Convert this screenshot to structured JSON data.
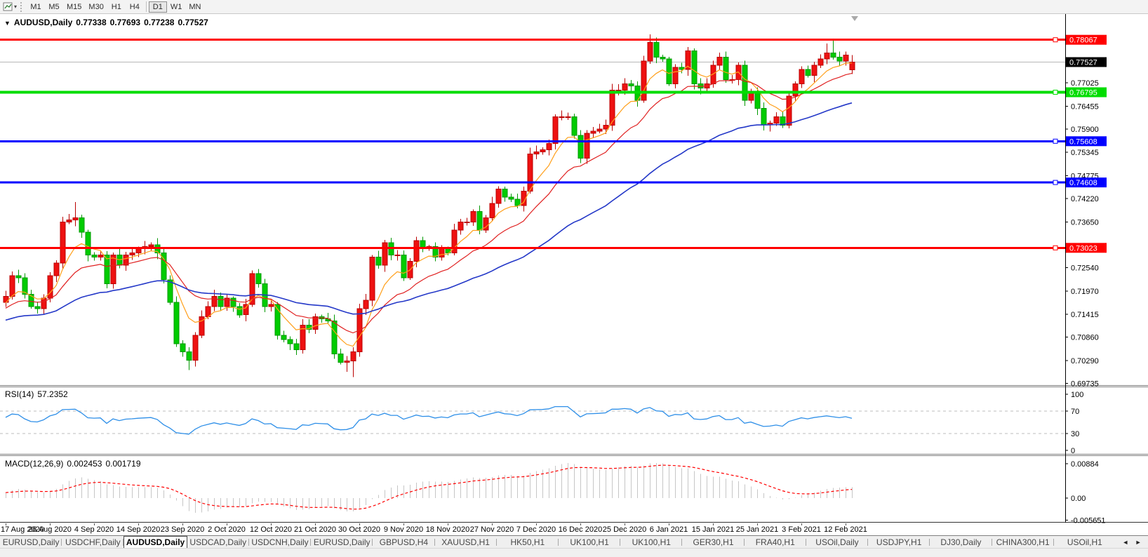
{
  "toolbar": {
    "timeframes": [
      "M1",
      "M5",
      "M15",
      "M30",
      "H1",
      "H4",
      "D1",
      "W1",
      "MN"
    ],
    "active_timeframe": "D1",
    "group_break_before": "D1"
  },
  "icons": {
    "collapse_triangle": "▼",
    "toolbar_caret": "▾",
    "tab_scroll_left": "◄",
    "tab_scroll_right": "►"
  },
  "chart_header": {
    "symbol": "AUDUSD,Daily",
    "open": "0.77338",
    "high": "0.77693",
    "low": "0.77238",
    "close": "0.77527"
  },
  "price_axis": {
    "ticks": [
      0.77025,
      0.76455,
      0.759,
      0.75345,
      0.74775,
      0.7422,
      0.7365,
      0.7254,
      0.7197,
      0.71415,
      0.7086,
      0.7029,
      0.69735
    ]
  },
  "levels": [
    {
      "price": 0.78067,
      "color": "#ff0000",
      "width": 3
    },
    {
      "price": 0.76795,
      "color": "#00dd00",
      "width": 4
    },
    {
      "price": 0.75608,
      "color": "#0000ff",
      "width": 3
    },
    {
      "price": 0.74608,
      "color": "#0000ff",
      "width": 3
    },
    {
      "price": 0.73023,
      "color": "#ff0000",
      "width": 3
    }
  ],
  "current_price": {
    "value": 0.77527,
    "line_color": "#b8b8b8",
    "label_bg": "#000000"
  },
  "date_axis": {
    "labels": [
      "17 Aug 2020",
      "26 Aug 2020",
      "4 Sep 2020",
      "14 Sep 2020",
      "23 Sep 2020",
      "2 Oct 2020",
      "12 Oct 2020",
      "21 Oct 2020",
      "30 Oct 2020",
      "9 Nov 2020",
      "18 Nov 2020",
      "27 Nov 2020",
      "7 Dec 2020",
      "16 Dec 2020",
      "25 Dec 2020",
      "6 Jan 2021",
      "15 Jan 2021",
      "25 Jan 2021",
      "3 Feb 2021",
      "12 Feb 2021"
    ]
  },
  "rsi_panel": {
    "label": "RSI(14)",
    "value": "57.2352",
    "axis_ticks": [
      100,
      70,
      30,
      0
    ],
    "overbought": 70,
    "oversold": 30,
    "line_color": "#2e8fe8"
  },
  "macd_panel": {
    "label": "MACD(12,26,9)",
    "macd_value": "0.002453",
    "signal_value": "0.001719",
    "axis_ticks": [
      {
        "label": "0.00884",
        "value": 0.00884
      },
      {
        "label": "0.00",
        "value": 0
      },
      {
        "label": "-0.005651",
        "value": -0.005651
      }
    ],
    "histogram_color": "#c6c6c6",
    "signal_color": "#ff0000"
  },
  "tabs": {
    "items": [
      "EURUSD,Daily",
      "USDCHF,Daily",
      "AUDUSD,Daily",
      "USDCAD,Daily",
      "USDCNH,Daily",
      "EURUSD,Daily",
      "GBPUSD,H4",
      "XAUUSD,H1",
      "HK50,H1",
      "UK100,H1",
      "UK100,H1",
      "GER30,H1",
      "FRA40,H1",
      "USOil,Daily",
      "USDJPY,H1",
      "DJ30,Daily",
      "CHINA300,H1",
      "USOil,H1"
    ],
    "active_index": 2
  },
  "chart_data": {
    "type": "candlestick",
    "symbol": "AUDUSD",
    "timeframe": "Daily",
    "visible_range": [
      "17 Aug 2020",
      "19 Feb 2021"
    ],
    "first_open": 0.717,
    "closes": [
      0.7185,
      0.7235,
      0.723,
      0.719,
      0.716,
      0.7155,
      0.718,
      0.7235,
      0.7265,
      0.7365,
      0.737,
      0.7375,
      0.734,
      0.7285,
      0.728,
      0.7285,
      0.7215,
      0.7285,
      0.726,
      0.7285,
      0.729,
      0.73,
      0.7305,
      0.731,
      0.729,
      0.7225,
      0.717,
      0.707,
      0.705,
      0.703,
      0.709,
      0.7135,
      0.716,
      0.7185,
      0.716,
      0.718,
      0.716,
      0.714,
      0.7165,
      0.724,
      0.7215,
      0.716,
      0.7165,
      0.709,
      0.708,
      0.707,
      0.7055,
      0.7115,
      0.7105,
      0.7135,
      0.713,
      0.7125,
      0.7045,
      0.7025,
      0.7028,
      0.705,
      0.7155,
      0.7175,
      0.728,
      0.726,
      0.7315,
      0.7285,
      0.7285,
      0.723,
      0.727,
      0.732,
      0.73,
      0.7305,
      0.728,
      0.73,
      0.729,
      0.7345,
      0.7365,
      0.7365,
      0.739,
      0.7345,
      0.7375,
      0.741,
      0.7445,
      0.7425,
      0.742,
      0.7405,
      0.744,
      0.753,
      0.7535,
      0.754,
      0.7555,
      0.762,
      0.762,
      0.762,
      0.7575,
      0.752,
      0.758,
      0.7585,
      0.759,
      0.76,
      0.7685,
      0.7685,
      0.77,
      0.7695,
      0.766,
      0.7755,
      0.78,
      0.7765,
      0.776,
      0.77,
      0.774,
      0.7735,
      0.778,
      0.77,
      0.769,
      0.77,
      0.7745,
      0.7765,
      0.771,
      0.771,
      0.7745,
      0.766,
      0.768,
      0.764,
      0.76,
      0.7605,
      0.762,
      0.76,
      0.767,
      0.77,
      0.7735,
      0.772,
      0.7745,
      0.776,
      0.7775,
      0.7765,
      0.7755,
      0.777,
      0.77527
    ],
    "wick_amp": 0.0016,
    "overrides": {
      "11": {
        "h": 0.7413
      },
      "29": {
        "l": 0.7006
      },
      "54": {
        "l": 0.7002
      },
      "55": {
        "l": 0.6989
      },
      "102": {
        "h": 0.782,
        "l": 0.7748
      },
      "130": {
        "h": 0.7798
      },
      "131": {
        "h": 0.78067
      },
      "134": {
        "o": 0.77338,
        "h": 0.77693,
        "l": 0.77238,
        "c": 0.77527
      }
    },
    "bull_color": "#ee1111",
    "bull_border": "#bb0000",
    "bear_color": "#00cc00",
    "bear_border": "#009900",
    "moving_averages": [
      {
        "period": 7,
        "color": "#ff9f1a"
      },
      {
        "period": 17,
        "color": "#e02020"
      },
      {
        "period": 48,
        "color": "#2438c8"
      }
    ],
    "warmup": {
      "days": 60,
      "step": 0.0002,
      "wiggle": 0.0008
    }
  }
}
